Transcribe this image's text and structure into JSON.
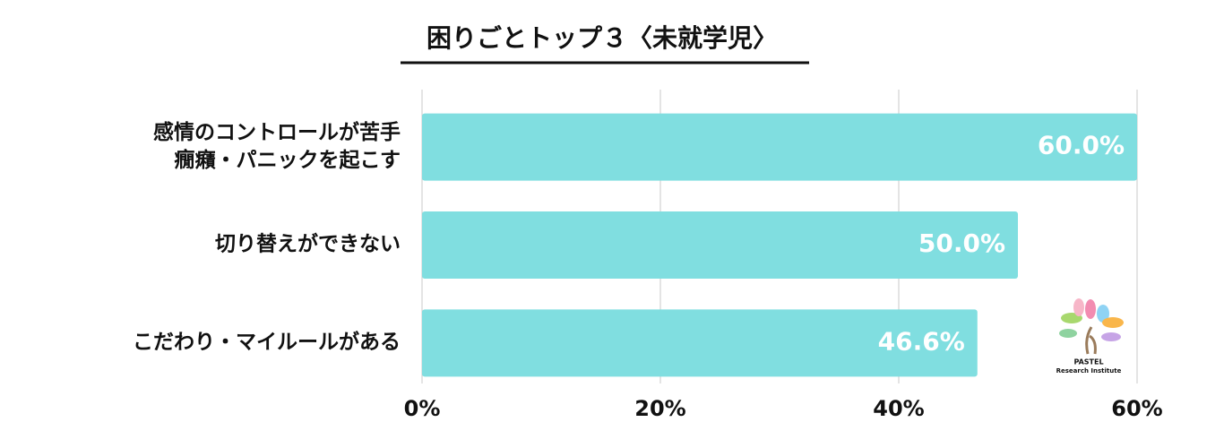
{
  "chart_data": {
    "type": "bar",
    "orientation": "horizontal",
    "title": "困りごとトップ３〈未就学児〉",
    "categories": [
      "感情のコントロールが苦手\n癇癪・パニックを起こす",
      "切り替えができない",
      "こだわり・マイルールがある"
    ],
    "values": [
      60,
      50,
      46.6
    ],
    "value_labels": [
      "60.0%",
      "50.0%",
      "46.6%"
    ],
    "color": "#80dee0",
    "xlim": [
      0,
      60
    ],
    "xticks": [
      {
        "value": 0,
        "label": "0%"
      },
      {
        "value": 20,
        "label": "20%"
      },
      {
        "value": 40,
        "label": "40%"
      },
      {
        "value": 60,
        "label": "60%"
      }
    ],
    "grid": true
  },
  "logo": {
    "name": "PASTEL",
    "subtitle": "Research Institute"
  }
}
